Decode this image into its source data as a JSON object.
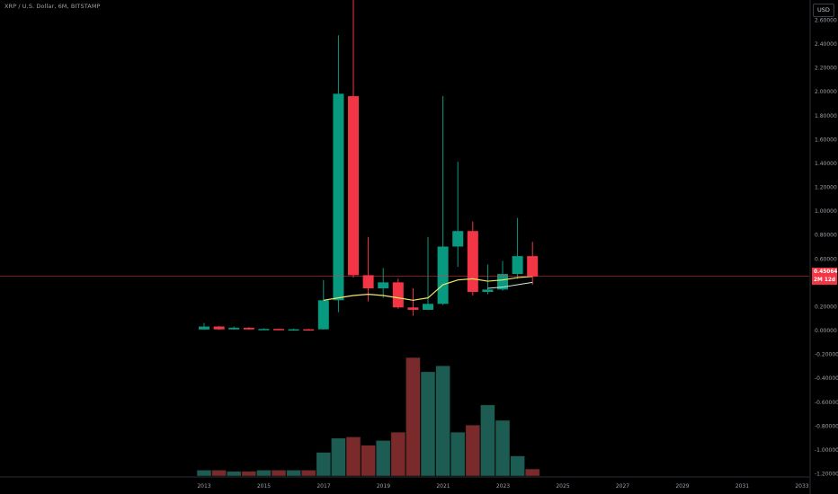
{
  "header": {
    "symbol_title": "XRP / U.S. Dollar, 6M, BITSTAMP"
  },
  "price_scale": {
    "currency_label": "USD"
  },
  "last_price": {
    "value": "0.45064",
    "countdown": "2M 12d"
  },
  "colors": {
    "background": "#000000",
    "up": "#089981",
    "down": "#f23645",
    "volume_up": "#1d5c52",
    "volume_down": "#7a2a2a",
    "ma_line": "#f5e663",
    "ma_line_2": "#c8f0e0",
    "axis_text": "#9aa0a6",
    "price_line": "#f23645"
  },
  "chart_data": {
    "type": "candlestick",
    "title": "XRP / U.S. Dollar, 6M, BITSTAMP",
    "ylabel": "USD",
    "ylim": [
      -1.2,
      2.6
    ],
    "y_ticks": [
      "2.60000",
      "2.40000",
      "2.20000",
      "2.00000",
      "1.80000",
      "1.60000",
      "1.40000",
      "1.20000",
      "1.00000",
      "0.80000",
      "0.60000",
      "0.40000",
      "0.20000",
      "0.00000",
      "-0.20000",
      "-0.40000",
      "-0.60000",
      "-0.80000",
      "-1.00000",
      "-1.20000"
    ],
    "x_ticks": [
      "2013",
      "2015",
      "2017",
      "2019",
      "2021",
      "2023",
      "2025",
      "2027",
      "2029",
      "2031",
      "2033"
    ],
    "grid": false,
    "candles": [
      {
        "period": "2013-H1",
        "open": 0.005,
        "high": 0.06,
        "low": 0.003,
        "close": 0.03
      },
      {
        "period": "2013-H2",
        "open": 0.03,
        "high": 0.035,
        "low": 0.003,
        "close": 0.006
      },
      {
        "period": "2014-H1",
        "open": 0.006,
        "high": 0.03,
        "low": 0.004,
        "close": 0.02
      },
      {
        "period": "2014-H2",
        "open": 0.02,
        "high": 0.025,
        "low": 0.004,
        "close": 0.006
      },
      {
        "period": "2015-H1",
        "open": 0.006,
        "high": 0.015,
        "low": 0.002,
        "close": 0.01
      },
      {
        "period": "2015-H2",
        "open": 0.01,
        "high": 0.012,
        "low": 0.003,
        "close": 0.006
      },
      {
        "period": "2016-H1",
        "open": 0.006,
        "high": 0.012,
        "low": 0.004,
        "close": 0.007
      },
      {
        "period": "2016-H2",
        "open": 0.007,
        "high": 0.01,
        "low": 0.005,
        "close": 0.0065
      },
      {
        "period": "2017-H1",
        "open": 0.0065,
        "high": 0.42,
        "low": 0.005,
        "close": 0.25
      },
      {
        "period": "2017-H2",
        "open": 0.25,
        "high": 2.47,
        "low": 0.15,
        "close": 1.98
      },
      {
        "period": "2018-H1",
        "open": 1.96,
        "high": 3.31,
        "low": 0.44,
        "close": 0.46
      },
      {
        "period": "2018-H2",
        "open": 0.46,
        "high": 0.78,
        "low": 0.24,
        "close": 0.35
      },
      {
        "period": "2019-H1",
        "open": 0.35,
        "high": 0.52,
        "low": 0.27,
        "close": 0.4
      },
      {
        "period": "2019-H2",
        "open": 0.4,
        "high": 0.43,
        "low": 0.18,
        "close": 0.19
      },
      {
        "period": "2020-H1",
        "open": 0.19,
        "high": 0.35,
        "low": 0.12,
        "close": 0.17
      },
      {
        "period": "2020-H2",
        "open": 0.17,
        "high": 0.78,
        "low": 0.17,
        "close": 0.22
      },
      {
        "period": "2021-H1",
        "open": 0.22,
        "high": 1.96,
        "low": 0.21,
        "close": 0.7
      },
      {
        "period": "2021-H2",
        "open": 0.7,
        "high": 1.41,
        "low": 0.53,
        "close": 0.83
      },
      {
        "period": "2022-H1",
        "open": 0.83,
        "high": 0.91,
        "low": 0.29,
        "close": 0.32
      },
      {
        "period": "2022-H2",
        "open": 0.32,
        "high": 0.55,
        "low": 0.3,
        "close": 0.34
      },
      {
        "period": "2023-H1",
        "open": 0.34,
        "high": 0.58,
        "low": 0.33,
        "close": 0.47
      },
      {
        "period": "2023-H2",
        "open": 0.47,
        "high": 0.94,
        "low": 0.43,
        "close": 0.62
      },
      {
        "period": "2024-H1",
        "open": 0.62,
        "high": 0.74,
        "low": 0.38,
        "close": 0.45
      }
    ],
    "moving_average_1": [
      0.25,
      0.27,
      0.29,
      0.3,
      0.29,
      0.27,
      0.25,
      0.27,
      0.38,
      0.42,
      0.43,
      0.41,
      0.42,
      0.44,
      0.45
    ],
    "moving_average_2": [
      0.35,
      0.36,
      0.38,
      0.4
    ],
    "volume_relative": [
      0.05,
      0.05,
      0.04,
      0.04,
      0.05,
      0.05,
      0.05,
      0.05,
      0.2,
      0.32,
      0.33,
      0.26,
      0.3,
      0.37,
      1.0,
      0.88,
      0.93,
      0.37,
      0.43,
      0.6,
      0.47,
      0.17,
      0.06
    ]
  }
}
